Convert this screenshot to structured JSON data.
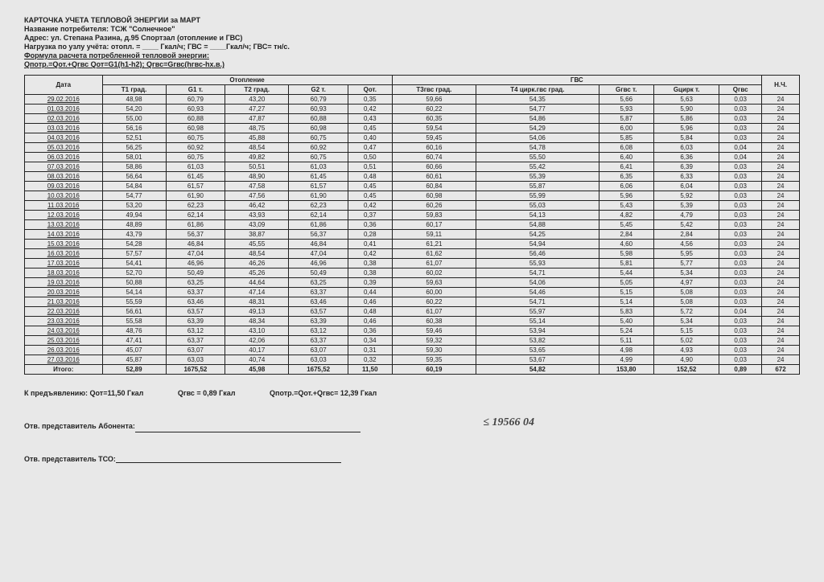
{
  "header": {
    "title": "КАРТОЧКА УЧЕТА ТЕПЛОВОЙ ЭНЕРГИИ за МАРТ",
    "consumer_label": "Название потребителя: ТСЖ \"Солнечное\"",
    "address": "Адрес: ул. Степана Разина, д.95 Спортзал (отопление и ГВС)",
    "load": "Нагрузка по узлу учёта: отопл. = ____ Гкал/ч; ГВС = ____Гкал/ч; ГВС= тн/с.",
    "formula_label": "Формула расчета потребленной тепловой энергии:",
    "formula": "Qпотр.=Qот.+Qгвс Qот=G1(h1-h2); Qгвс=Gгвс(hгвс-hх.в.)"
  },
  "table": {
    "group_heating": "Отопление",
    "group_gvs": "ГВС",
    "col_date": "Дата",
    "col_t1": "T1\nград.",
    "col_g1": "G1\nт.",
    "col_t2": "T2\nград.",
    "col_g2": "G2\nт.",
    "col_qot": "Qот.",
    "col_t3": "T3гвс\nград.",
    "col_t4": "T4\nцирк.гвс\nград.",
    "col_ggvs": "Gгвс\nт.",
    "col_gcirk": "Gцирк\nт.",
    "col_qgvs": "Qгвс",
    "col_nch": "Н.Ч.",
    "rows": [
      [
        "29.02.2016",
        "48,98",
        "60,79",
        "43,20",
        "60,79",
        "0,35",
        "59,66",
        "54,35",
        "5,66",
        "5,63",
        "0,03",
        "24"
      ],
      [
        "01.03.2016",
        "54,20",
        "60,93",
        "47,27",
        "60,93",
        "0,42",
        "60,22",
        "54,77",
        "5,93",
        "5,90",
        "0,03",
        "24"
      ],
      [
        "02.03.2016",
        "55,00",
        "60,88",
        "47,87",
        "60,88",
        "0,43",
        "60,35",
        "54,86",
        "5,87",
        "5,86",
        "0,03",
        "24"
      ],
      [
        "03.03.2016",
        "56,16",
        "60,98",
        "48,75",
        "60,98",
        "0,45",
        "59,54",
        "54,29",
        "6,00",
        "5,96",
        "0,03",
        "24"
      ],
      [
        "04.03.2016",
        "52,51",
        "60,75",
        "45,88",
        "60,75",
        "0,40",
        "59,45",
        "54,06",
        "5,85",
        "5,84",
        "0,03",
        "24"
      ],
      [
        "05.03.2016",
        "56,25",
        "60,92",
        "48,54",
        "60,92",
        "0,47",
        "60,16",
        "54,78",
        "6,08",
        "6,03",
        "0,04",
        "24"
      ],
      [
        "06.03.2016",
        "58,01",
        "60,75",
        "49,82",
        "60,75",
        "0,50",
        "60,74",
        "55,50",
        "6,40",
        "6,36",
        "0,04",
        "24"
      ],
      [
        "07.03.2016",
        "58,86",
        "61,03",
        "50,51",
        "61,03",
        "0,51",
        "60,66",
        "55,42",
        "6,41",
        "6,39",
        "0,03",
        "24"
      ],
      [
        "08.03.2016",
        "56,64",
        "61,45",
        "48,90",
        "61,45",
        "0,48",
        "60,61",
        "55,39",
        "6,35",
        "6,33",
        "0,03",
        "24"
      ],
      [
        "09.03.2016",
        "54,84",
        "61,57",
        "47,58",
        "61,57",
        "0,45",
        "60,84",
        "55,87",
        "6,06",
        "6,04",
        "0,03",
        "24"
      ],
      [
        "10.03.2016",
        "54,77",
        "61,90",
        "47,56",
        "61,90",
        "0,45",
        "60,98",
        "55,99",
        "5,96",
        "5,92",
        "0,03",
        "24"
      ],
      [
        "11.03.2016",
        "53,20",
        "62,23",
        "46,42",
        "62,23",
        "0,42",
        "60,26",
        "55,03",
        "5,43",
        "5,39",
        "0,03",
        "24"
      ],
      [
        "12.03.2016",
        "49,94",
        "62,14",
        "43,93",
        "62,14",
        "0,37",
        "59,83",
        "54,13",
        "4,82",
        "4,79",
        "0,03",
        "24"
      ],
      [
        "13.03.2016",
        "48,89",
        "61,86",
        "43,09",
        "61,86",
        "0,36",
        "60,17",
        "54,88",
        "5,45",
        "5,42",
        "0,03",
        "24"
      ],
      [
        "14.03.2016",
        "43,79",
        "56,37",
        "38,87",
        "56,37",
        "0,28",
        "59,11",
        "54,25",
        "2,84",
        "2,84",
        "0,03",
        "24"
      ],
      [
        "15.03.2016",
        "54,28",
        "46,84",
        "45,55",
        "46,84",
        "0,41",
        "61,21",
        "54,94",
        "4,60",
        "4,56",
        "0,03",
        "24"
      ],
      [
        "16.03.2016",
        "57,57",
        "47,04",
        "48,54",
        "47,04",
        "0,42",
        "61,62",
        "56,46",
        "5,98",
        "5,95",
        "0,03",
        "24"
      ],
      [
        "17.03.2016",
        "54,41",
        "46,96",
        "46,26",
        "46,96",
        "0,38",
        "61,07",
        "55,93",
        "5,81",
        "5,77",
        "0,03",
        "24"
      ],
      [
        "18.03.2016",
        "52,70",
        "50,49",
        "45,26",
        "50,49",
        "0,38",
        "60,02",
        "54,71",
        "5,44",
        "5,34",
        "0,03",
        "24"
      ],
      [
        "19.03.2016",
        "50,88",
        "63,25",
        "44,64",
        "63,25",
        "0,39",
        "59,63",
        "54,06",
        "5,05",
        "4,97",
        "0,03",
        "24"
      ],
      [
        "20.03.2016",
        "54,14",
        "63,37",
        "47,14",
        "63,37",
        "0,44",
        "60,00",
        "54,46",
        "5,15",
        "5,08",
        "0,03",
        "24"
      ],
      [
        "21.03.2016",
        "55,59",
        "63,46",
        "48,31",
        "63,46",
        "0,46",
        "60,22",
        "54,71",
        "5,14",
        "5,08",
        "0,03",
        "24"
      ],
      [
        "22.03.2016",
        "56,61",
        "63,57",
        "49,13",
        "63,57",
        "0,48",
        "61,07",
        "55,97",
        "5,83",
        "5,72",
        "0,04",
        "24"
      ],
      [
        "23.03.2016",
        "55,58",
        "63,39",
        "48,34",
        "63,39",
        "0,46",
        "60,38",
        "55,14",
        "5,40",
        "5,34",
        "0,03",
        "24"
      ],
      [
        "24.03.2016",
        "48,76",
        "63,12",
        "43,10",
        "63,12",
        "0,36",
        "59,46",
        "53,94",
        "5,24",
        "5,15",
        "0,03",
        "24"
      ],
      [
        "25.03.2016",
        "47,41",
        "63,37",
        "42,06",
        "63,37",
        "0,34",
        "59,32",
        "53,82",
        "5,11",
        "5,02",
        "0,03",
        "24"
      ],
      [
        "26.03.2016",
        "45,07",
        "63,07",
        "40,17",
        "63,07",
        "0,31",
        "59,30",
        "53,65",
        "4,98",
        "4,93",
        "0,03",
        "24"
      ],
      [
        "27.03.2016",
        "45,87",
        "63,03",
        "40,74",
        "63,03",
        "0,32",
        "59,35",
        "53,67",
        "4,99",
        "4,90",
        "0,03",
        "24"
      ]
    ],
    "totals_label": "Итого:",
    "totals": [
      "52,89",
      "1675,52",
      "45,98",
      "1675,52",
      "11,50",
      "60,19",
      "54,82",
      "153,80",
      "152,52",
      "0,89",
      "672"
    ]
  },
  "summary": {
    "s1": "К предъявлению: Qот=11,50 Гкал",
    "s2": "Qгвс = 0,89 Гкал",
    "s3": "Qпотр.=Qот.+Qгвс= 12,39 Гкал"
  },
  "sig": {
    "abonent": "Отв. представитель Абонента:",
    "tso": "Отв. представитель ТСО:",
    "handwritten": "≤ 19566 04"
  }
}
